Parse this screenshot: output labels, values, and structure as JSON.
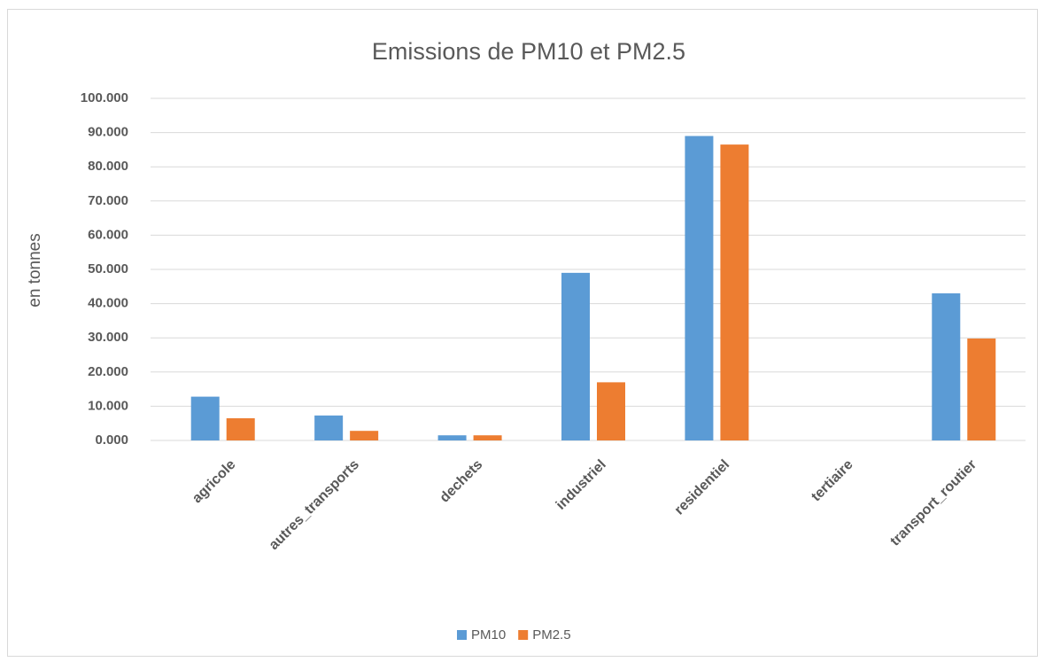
{
  "chart_data": {
    "type": "bar",
    "title": "Emissions de PM10 et PM2.5",
    "y_label": "en tonnes",
    "categories": [
      "agricole",
      "autres_transports",
      "dechets",
      "industriel",
      "residentiel",
      "tertiaire",
      "transport_routier"
    ],
    "series": [
      {
        "name": "PM10",
        "color": "#5b9bd5",
        "values": [
          12800,
          7300,
          1500,
          49000,
          89000,
          0,
          43000
        ]
      },
      {
        "name": "PM2.5",
        "color": "#ed7d31",
        "values": [
          6500,
          2800,
          1500,
          17000,
          86500,
          0,
          29800
        ]
      }
    ],
    "ylim": [
      0,
      100000
    ],
    "yticks": [
      {
        "value": 0,
        "label": "0.000"
      },
      {
        "value": 10000,
        "label": "10.000"
      },
      {
        "value": 20000,
        "label": "20.000"
      },
      {
        "value": 30000,
        "label": "30.000"
      },
      {
        "value": 40000,
        "label": "40.000"
      },
      {
        "value": 50000,
        "label": "50.000"
      },
      {
        "value": 60000,
        "label": "60.000"
      },
      {
        "value": 70000,
        "label": "70.000"
      },
      {
        "value": 80000,
        "label": "80.000"
      },
      {
        "value": 90000,
        "label": "90.000"
      },
      {
        "value": 100000,
        "label": "100.000"
      }
    ],
    "grid": true,
    "legend": "bottom"
  }
}
